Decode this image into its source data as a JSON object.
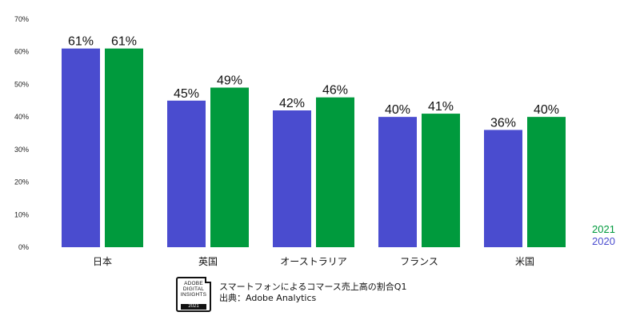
{
  "chart_data": {
    "type": "bar",
    "categories": [
      "日本",
      "英国",
      "オーストラリア",
      "フランス",
      "米国"
    ],
    "series": [
      {
        "name": "2020",
        "values": [
          61,
          45,
          42,
          40,
          36
        ],
        "labels": [
          "61%",
          "45%",
          "42%",
          "40%",
          "36%"
        ],
        "color": "#4a4ccf"
      },
      {
        "name": "2021",
        "values": [
          61,
          49,
          46,
          41,
          40
        ],
        "labels": [
          "61%",
          "49%",
          "46%",
          "41%",
          "40%"
        ],
        "color": "#009a3d"
      }
    ],
    "ylim": [
      0,
      70
    ],
    "yticks": [
      0,
      10,
      20,
      30,
      40,
      50,
      60,
      70
    ],
    "ytick_labels": [
      "0%",
      "10%",
      "20%",
      "30%",
      "40%",
      "50%",
      "60%",
      "70%"
    ],
    "grid": false,
    "legend": {
      "position": "bottom-right",
      "order": [
        "2021",
        "2020"
      ]
    }
  },
  "footer": {
    "badge_lines": [
      "ADOBE",
      "DIGITAL",
      "INSIGHTS"
    ],
    "badge_year": "2021",
    "title": "スマートフォンによるコマース売上高の割合Q1",
    "source": "出典：Adobe Analytics"
  }
}
